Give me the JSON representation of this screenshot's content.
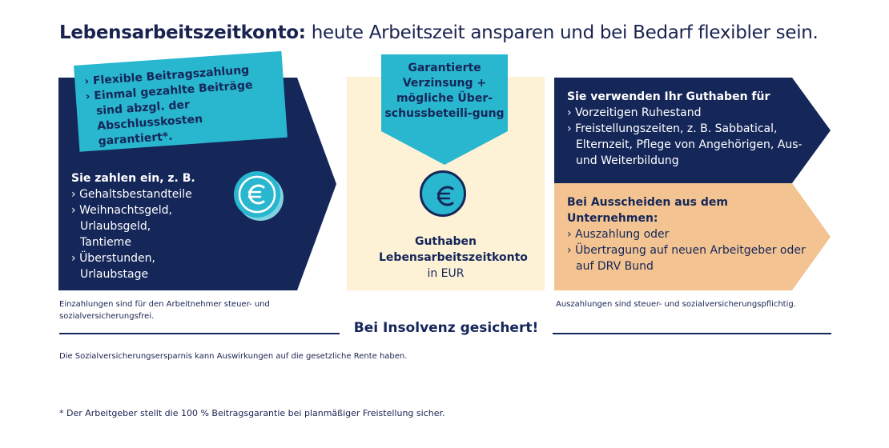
{
  "title": {
    "bold": "Lebensarbeitszeitkonto:",
    "rest": " heute Arbeitszeit ansparen und bei Bedarf flexibler sein."
  },
  "left": {
    "card_items": [
      "Flexible Beitragszahlung",
      "Einmal gezahlte Beiträge sind abzgl. der Abschlusskosten garantiert*."
    ],
    "heading": "Sie zahlen ein, z. B.",
    "items": [
      "Gehaltsbestandteile",
      "Weihnachtsgeld, Urlaubsgeld, Tantieme",
      "Überstunden, Urlaubstage"
    ],
    "note": "Einzahlungen sind für den Arbeitnehmer steuer- und sozialversicherungsfrei."
  },
  "middle": {
    "arrow_text": "Garantierte Verzinsung + mögliche Über-schussbeteili-gung",
    "label_bold": "Guthaben Lebensarbeitszeitkonto",
    "label_unit": "in EUR"
  },
  "right_top": {
    "heading": "Sie verwenden Ihr Guthaben für",
    "items": [
      "Vorzeitigen Ruhestand",
      "Freistellungszeiten, z. B. Sabbatical, Elternzeit, Pflege von Angehörigen, Aus- und Weiterbildung"
    ]
  },
  "right_bottom": {
    "heading": "Bei Ausscheiden aus dem Unternehmen:",
    "items": [
      "Auszahlung oder",
      "Übertragung auf neuen Arbeitgeber oder auf DRV Bund"
    ],
    "note": "Auszahlungen sind steuer- und sozialversicherungspflichtig."
  },
  "insolvency": "Bei Insolvenz gesichert!",
  "social_note": "Die Sozialversicherungsersparnis kann Auswirkungen auf die gesetzliche Rente haben.",
  "footnote": "* Der Arbeitgeber stellt die 100 % Beitragsgarantie bei planmäßiger Freistellung sicher.",
  "colors": {
    "navy": "#152659",
    "cyan": "#29b6cf",
    "cream": "#fdf2d6",
    "peach": "#f3c491"
  },
  "icons": [
    "euro-coin-icon"
  ]
}
